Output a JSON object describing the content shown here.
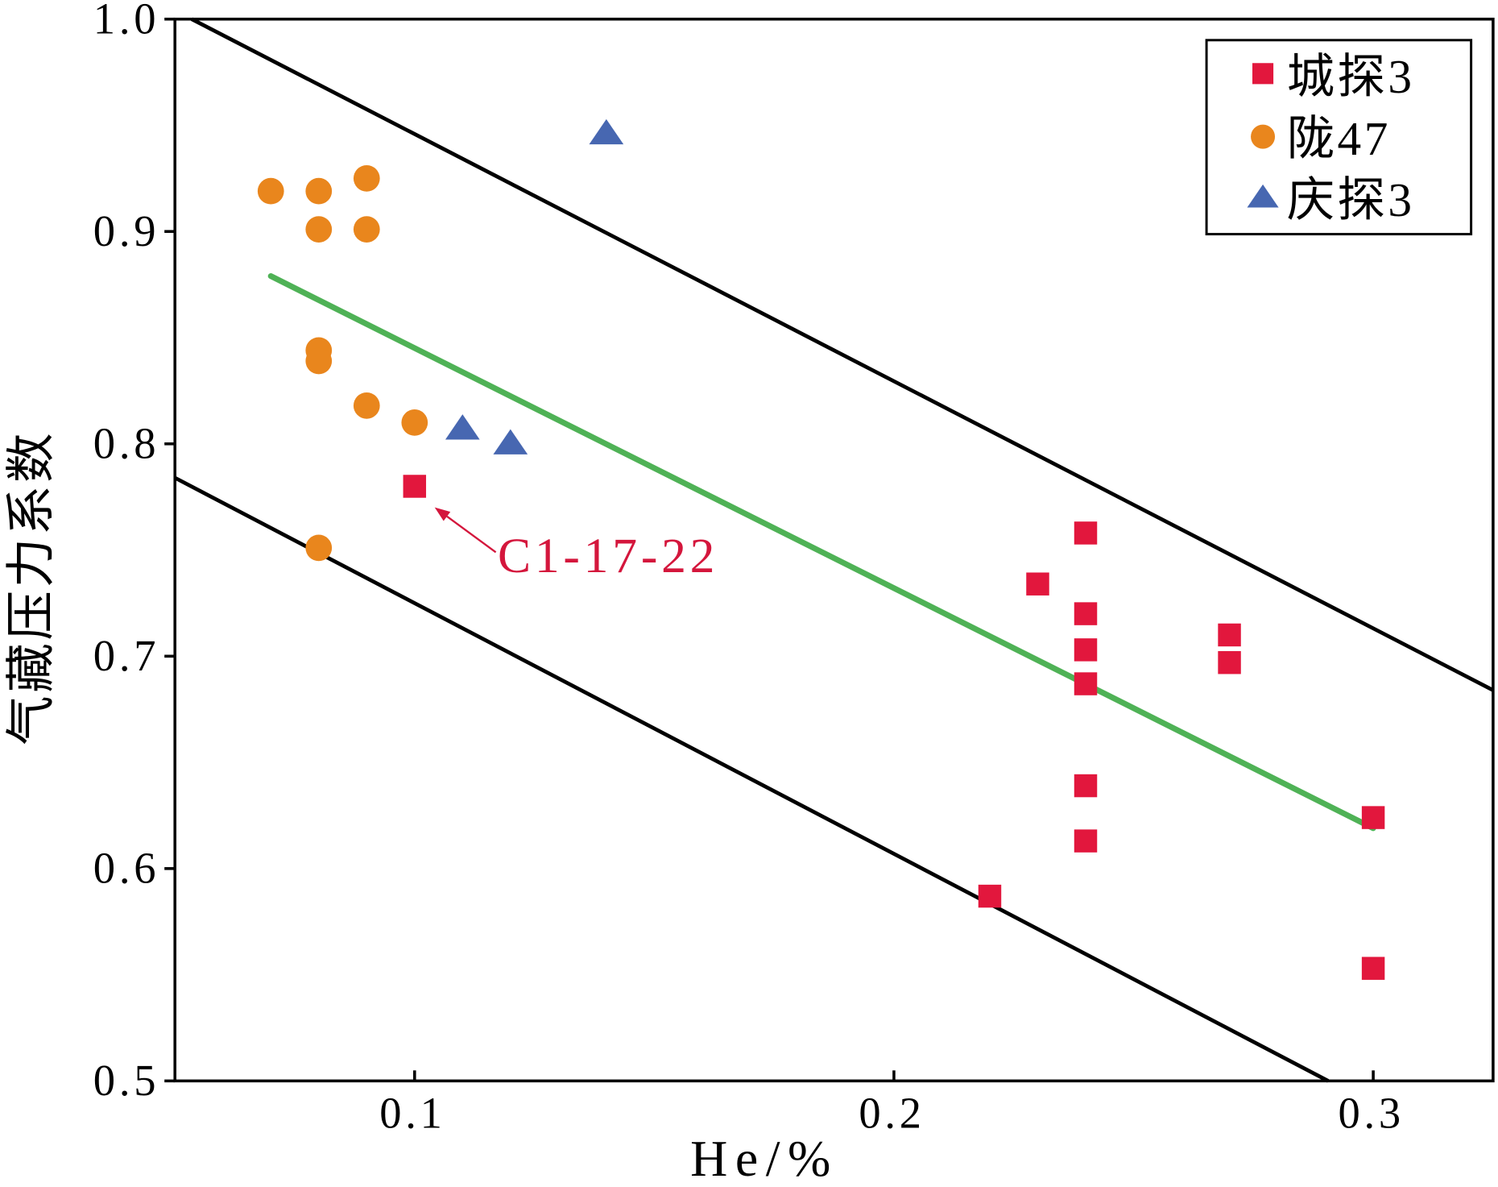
{
  "chart_data": {
    "type": "scatter",
    "xlabel": "He/%",
    "ylabel": "气藏压力系数",
    "xlim": [
      0.05,
      0.325
    ],
    "ylim": [
      0.5,
      1.0
    ],
    "xticks": [
      0.1,
      0.2,
      0.3
    ],
    "xtick_labels": [
      "0.1",
      "0.2",
      "0.3"
    ],
    "yticks": [
      0.5,
      0.6,
      0.7,
      0.8,
      0.9,
      1.0
    ],
    "ytick_labels": [
      "0.5",
      "0.6",
      "0.7",
      "0.8",
      "0.9",
      "1.0"
    ],
    "grid": false,
    "legend_position": "top-right",
    "series": [
      {
        "name": "城探3",
        "marker": "square",
        "color": "#e2173d",
        "points": [
          [
            0.1,
            0.78
          ],
          [
            0.22,
            0.587
          ],
          [
            0.23,
            0.734
          ],
          [
            0.24,
            0.758
          ],
          [
            0.24,
            0.72
          ],
          [
            0.24,
            0.703
          ],
          [
            0.24,
            0.687
          ],
          [
            0.24,
            0.639
          ],
          [
            0.24,
            0.613
          ],
          [
            0.27,
            0.71
          ],
          [
            0.27,
            0.697
          ],
          [
            0.3,
            0.624
          ],
          [
            0.3,
            0.553
          ]
        ]
      },
      {
        "name": "陇47",
        "marker": "circle",
        "color": "#e9861d",
        "points": [
          [
            0.07,
            0.919
          ],
          [
            0.08,
            0.919
          ],
          [
            0.08,
            0.901
          ],
          [
            0.09,
            0.925
          ],
          [
            0.09,
            0.901
          ],
          [
            0.08,
            0.844
          ],
          [
            0.08,
            0.839
          ],
          [
            0.09,
            0.818
          ],
          [
            0.1,
            0.81
          ],
          [
            0.08,
            0.751
          ]
        ]
      },
      {
        "name": "庆探3",
        "marker": "triangle",
        "color": "#4767b1",
        "points": [
          [
            0.14,
            0.946
          ],
          [
            0.11,
            0.807
          ],
          [
            0.12,
            0.8
          ]
        ]
      }
    ],
    "lines": [
      {
        "color": "#000000",
        "points": [
          [
            0.0535,
            1.0
          ],
          [
            0.325,
            0.684
          ]
        ]
      },
      {
        "color": "#000000",
        "points": [
          [
            0.05,
            0.784
          ],
          [
            0.2906,
            0.5
          ]
        ]
      },
      {
        "color": "#4fb256",
        "points": [
          [
            0.07,
            0.879
          ],
          [
            0.3,
            0.619
          ]
        ]
      }
    ],
    "annotations": [
      {
        "text": "C1-17-22",
        "color": "#d4163c",
        "target": [
          0.1,
          0.78
        ]
      }
    ]
  }
}
